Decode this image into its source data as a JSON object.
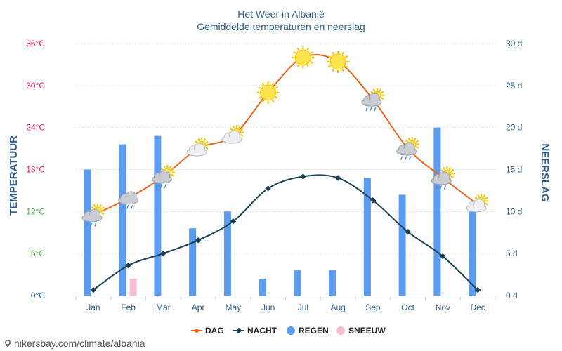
{
  "chart_data": {
    "type": "line",
    "title": "Het Weer in Albanië",
    "subtitle": "Gemiddelde temperaturen en neerslag",
    "categories": [
      "Jan",
      "Feb",
      "Mar",
      "Apr",
      "May",
      "Jun",
      "Jul",
      "Aug",
      "Sep",
      "Oct",
      "Nov",
      "Dec"
    ],
    "y_left": {
      "label": "TEMPERATUUR",
      "ticks": [
        "0°C",
        "6°C",
        "12°C",
        "18°C",
        "24°C",
        "30°C",
        "36°C"
      ],
      "tick_values": [
        0,
        6,
        12,
        18,
        24,
        30,
        36
      ],
      "tick_colors": [
        "#1565c0",
        "#4caf50",
        "#4caf50",
        "#e91e63",
        "#e91e63",
        "#e91e63",
        "#e91e63"
      ],
      "range": [
        0,
        36
      ]
    },
    "y_right": {
      "label": "NEERSLAG",
      "ticks": [
        "0 d",
        "5 d",
        "10 d",
        "15 d",
        "20 d",
        "25 d",
        "30 d"
      ],
      "tick_values": [
        0,
        5,
        10,
        15,
        20,
        25,
        30
      ],
      "range": [
        0,
        30
      ]
    },
    "series": [
      {
        "name": "DAG",
        "kind": "line",
        "axis": "left",
        "color": "#e8671c",
        "values": [
          11.5,
          13.9,
          17.0,
          21.0,
          22.8,
          29.0,
          34.0,
          33.4,
          28.0,
          21.0,
          16.8,
          13.0
        ]
      },
      {
        "name": "NACHT",
        "kind": "line",
        "axis": "left",
        "color": "#1a4156",
        "values": [
          0.8,
          4.3,
          6.0,
          7.9,
          10.6,
          15.3,
          17.0,
          16.8,
          13.6,
          9.1,
          5.6,
          0.8
        ]
      },
      {
        "name": "REGEN",
        "kind": "bar",
        "axis": "right",
        "color": "#5b9cf0",
        "values": [
          15,
          18,
          19,
          8,
          10,
          2,
          3,
          3,
          14,
          12,
          20,
          10
        ]
      },
      {
        "name": "SNEEUW",
        "kind": "bar",
        "axis": "right",
        "color": "#f6bcd0",
        "values": [
          0,
          2,
          0,
          0,
          0,
          0,
          0,
          0,
          0,
          0,
          0,
          0
        ]
      }
    ],
    "weather_icons": [
      "rain-sun",
      "rain-cloud",
      "rain-sun",
      "sun-cloud",
      "sun-cloud",
      "sun",
      "sun",
      "sun",
      "rain-sun",
      "rain-sun",
      "rain-sun",
      "sun-cloud"
    ],
    "grid": true,
    "legend_position": "bottom-center"
  },
  "source": "hikersbay.com/climate/albania"
}
